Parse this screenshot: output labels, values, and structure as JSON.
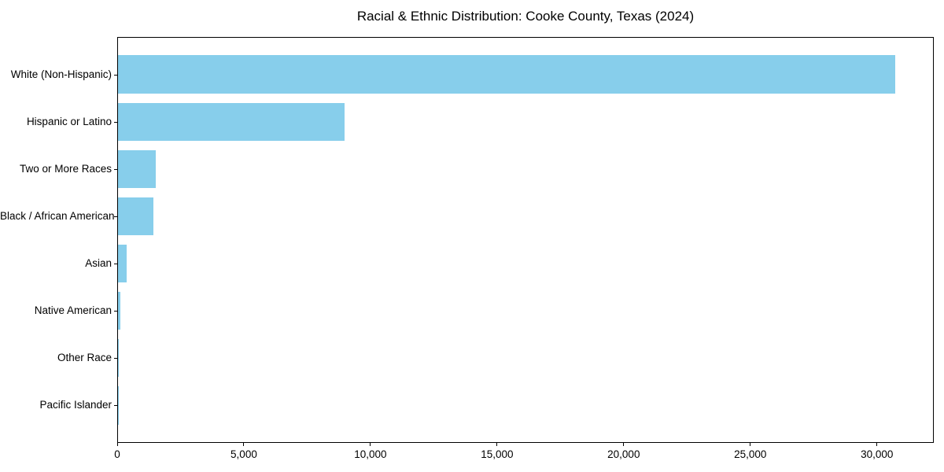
{
  "chart_data": {
    "type": "bar",
    "orientation": "horizontal",
    "title": "Racial & Ethnic Distribution: Cooke County, Texas (2024)",
    "categories": [
      "White (Non-Hispanic)",
      "Hispanic or Latino",
      "Two or More Races",
      "Black / African American",
      "Asian",
      "Native American",
      "Other Race",
      "Pacific Islander"
    ],
    "values": [
      30700,
      8950,
      1500,
      1400,
      350,
      100,
      30,
      10
    ],
    "xlabel": "",
    "ylabel": "",
    "xlim": [
      0,
      32245
    ],
    "x_ticks": [
      0,
      5000,
      10000,
      15000,
      20000,
      25000,
      30000
    ],
    "x_tick_labels": [
      "0",
      "5,000",
      "10,000",
      "15,000",
      "20,000",
      "25,000",
      "30,000"
    ],
    "bar_color": "#87CEEB",
    "axis_color": "#000000",
    "text_color": "#000000",
    "background_color": "#ffffff",
    "grid": false,
    "legend": "none"
  }
}
